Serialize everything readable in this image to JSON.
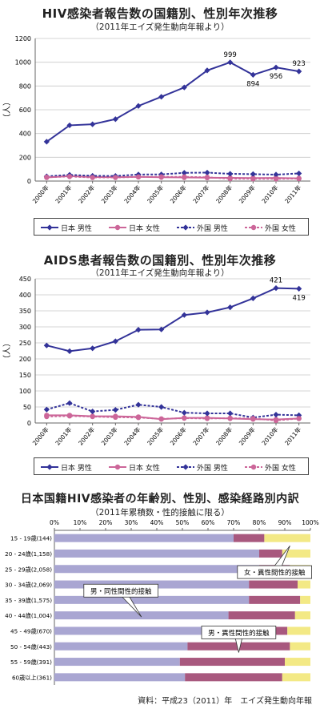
{
  "chart_data": [
    {
      "type": "line",
      "title": "HIV感染者報告数の国籍別、性別年次推移",
      "subtitle": "（2011年エイズ発生動向年報より）",
      "ylabel": "（人）",
      "ylim": [
        0,
        1200
      ],
      "yticks": [
        0,
        200,
        400,
        600,
        800,
        1000,
        1200
      ],
      "categories": [
        "2000年",
        "2001年",
        "2002年",
        "2003年",
        "2004年",
        "2005年",
        "2006年",
        "2007年",
        "2008年",
        "2009年",
        "2010年",
        "2011年"
      ],
      "series": [
        {
          "name": "日本 男性",
          "color": "#333399",
          "dash": false,
          "marker": "diamond",
          "values": [
            331,
            469,
            478,
            521,
            632,
            709,
            788,
            931,
            999,
            894,
            956,
            923
          ]
        },
        {
          "name": "日本 女性",
          "color": "#cc6699",
          "dash": false,
          "marker": "circle",
          "values": [
            30,
            42,
            34,
            33,
            35,
            32,
            30,
            28,
            27,
            25,
            26,
            23
          ]
        },
        {
          "name": "外国 男性",
          "color": "#333399",
          "dash": true,
          "marker": "diamond",
          "values": [
            40,
            52,
            44,
            43,
            55,
            56,
            69,
            71,
            61,
            58,
            54,
            64
          ]
        },
        {
          "name": "外国 女性",
          "color": "#cc6699",
          "dash": true,
          "marker": "circle",
          "values": [
            32,
            38,
            30,
            30,
            35,
            36,
            35,
            32,
            20,
            19,
            18,
            21
          ]
        }
      ],
      "annotations": [
        {
          "series": 0,
          "index": 8,
          "text": "999",
          "pos": "above"
        },
        {
          "series": 0,
          "index": 9,
          "text": "894",
          "pos": "below"
        },
        {
          "series": 0,
          "index": 10,
          "text": "956",
          "pos": "below"
        },
        {
          "series": 0,
          "index": 11,
          "text": "923",
          "pos": "above"
        }
      ],
      "legend_position": "bottom"
    },
    {
      "type": "line",
      "title": "AIDS患者報告数の国籍別、性別年次推移",
      "subtitle": "（2011年エイズ発生動向年報より）",
      "ylabel": "（人）",
      "ylim": [
        0,
        450
      ],
      "yticks": [
        0,
        50,
        100,
        150,
        200,
        250,
        300,
        350,
        400,
        450
      ],
      "categories": [
        "2000年",
        "2001年",
        "2002年",
        "2003年",
        "2004年",
        "2005年",
        "2006年",
        "2007年",
        "2008年",
        "2009年",
        "2010年",
        "2011年"
      ],
      "series": [
        {
          "name": "日本 男性",
          "color": "#333399",
          "dash": false,
          "marker": "diamond",
          "values": [
            242,
            224,
            233,
            255,
            291,
            292,
            337,
            345,
            361,
            389,
            421,
            419
          ]
        },
        {
          "name": "日本 女性",
          "color": "#cc6699",
          "dash": false,
          "marker": "circle",
          "values": [
            24,
            24,
            21,
            21,
            19,
            12,
            16,
            16,
            14,
            12,
            11,
            14
          ]
        },
        {
          "name": "外国 男性",
          "color": "#333399",
          "dash": true,
          "marker": "diamond",
          "values": [
            42,
            62,
            36,
            41,
            57,
            50,
            32,
            30,
            30,
            17,
            26,
            24
          ]
        },
        {
          "name": "外国 女性",
          "color": "#cc6699",
          "dash": true,
          "marker": "circle",
          "values": [
            20,
            22,
            20,
            18,
            17,
            13,
            15,
            14,
            15,
            14,
            8,
            14
          ]
        }
      ],
      "annotations": [
        {
          "series": 0,
          "index": 10,
          "text": "421",
          "pos": "above"
        },
        {
          "series": 0,
          "index": 11,
          "text": "419",
          "pos": "below"
        }
      ],
      "legend_position": "bottom"
    },
    {
      "type": "bar",
      "orientation": "horizontal",
      "stacked": "percent",
      "title": "日本国籍HIV感染者の年齢別、性別、感染経路別内訳",
      "subtitle": "（2011年累積数・性的接触に限る）",
      "xticks": [
        "0%",
        "10%",
        "20%",
        "30%",
        "40%",
        "50%",
        "60%",
        "70%",
        "80%",
        "90%",
        "100%"
      ],
      "categories": [
        "15 - 19歳(144)",
        "20 - 24歳(1,158)",
        "25 - 29歳(2,058)",
        "30 - 34歳(2,069)",
        "35 - 39歳(1,575)",
        "40 - 44歳(1,004)",
        "45 - 49歳(670)",
        "50 - 54歳(443)",
        "55 - 59歳(391)",
        "60歳以上(361)"
      ],
      "series": [
        {
          "name": "男・同性間性的接触",
          "color": "#a9a6d2",
          "values": [
            70,
            80,
            80,
            76,
            76,
            68,
            58,
            52,
            49,
            51
          ]
        },
        {
          "name": "男・異性間性的接触",
          "color": "#a8587e",
          "values": [
            12,
            9,
            12,
            19,
            20,
            26,
            33,
            40,
            41,
            38
          ]
        },
        {
          "name": "女・異性間性的接触",
          "color": "#f3e985",
          "values": [
            18,
            11,
            8,
            5,
            4,
            6,
            9,
            8,
            10,
            11
          ]
        }
      ]
    }
  ],
  "source": "資料：平成23（2011）年　エイズ発生動向年報"
}
